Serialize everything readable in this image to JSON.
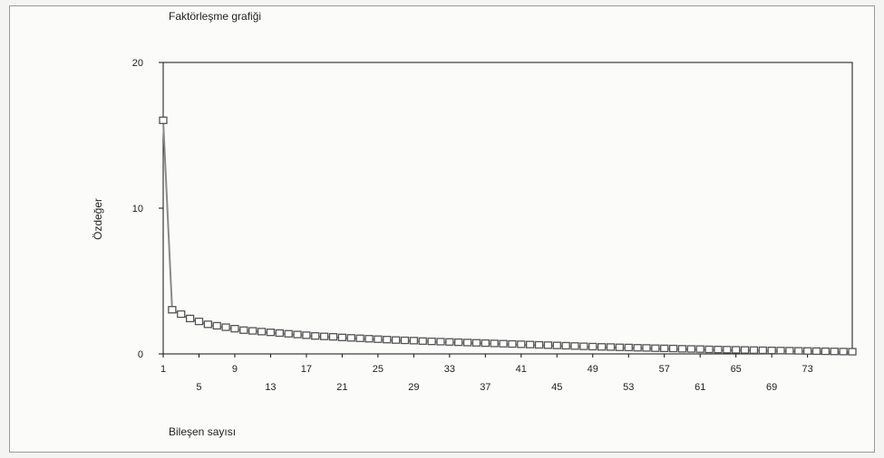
{
  "chart_data": {
    "type": "line",
    "title": "Faktörleşme grafiği",
    "xlabel": "Bileşen sayısı",
    "ylabel": "Özdeğer",
    "xlim": [
      1,
      78
    ],
    "ylim": [
      0,
      20
    ],
    "y_ticks": [
      0,
      10,
      20
    ],
    "x_ticks_upper": [
      1,
      9,
      17,
      25,
      33,
      41,
      49,
      57,
      65,
      73
    ],
    "x_ticks_lower": [
      5,
      13,
      21,
      29,
      37,
      45,
      53,
      61,
      69
    ],
    "grid": false,
    "legend": "none",
    "marker": "square",
    "line_color": "#8a8a8a",
    "x": [
      1,
      2,
      3,
      4,
      5,
      6,
      7,
      8,
      9,
      10,
      11,
      12,
      13,
      14,
      15,
      16,
      17,
      18,
      19,
      20,
      21,
      22,
      23,
      24,
      25,
      26,
      27,
      28,
      29,
      30,
      31,
      32,
      33,
      34,
      35,
      36,
      37,
      38,
      39,
      40,
      41,
      42,
      43,
      44,
      45,
      46,
      47,
      48,
      49,
      50,
      51,
      52,
      53,
      54,
      55,
      56,
      57,
      58,
      59,
      60,
      61,
      62,
      63,
      64,
      65,
      66,
      67,
      68,
      69,
      70,
      71,
      72,
      73,
      74,
      75,
      76,
      77,
      78
    ],
    "y": [
      16.0,
      3.0,
      2.7,
      2.4,
      2.2,
      2.0,
      1.9,
      1.8,
      1.7,
      1.6,
      1.55,
      1.5,
      1.45,
      1.4,
      1.35,
      1.3,
      1.25,
      1.2,
      1.17,
      1.14,
      1.1,
      1.07,
      1.04,
      1.01,
      0.98,
      0.95,
      0.92,
      0.9,
      0.88,
      0.85,
      0.83,
      0.81,
      0.79,
      0.77,
      0.75,
      0.73,
      0.71,
      0.69,
      0.67,
      0.65,
      0.63,
      0.61,
      0.59,
      0.57,
      0.55,
      0.53,
      0.51,
      0.49,
      0.47,
      0.45,
      0.44,
      0.42,
      0.41,
      0.39,
      0.38,
      0.36,
      0.35,
      0.34,
      0.32,
      0.31,
      0.3,
      0.28,
      0.27,
      0.26,
      0.25,
      0.24,
      0.23,
      0.22,
      0.21,
      0.2,
      0.19,
      0.18,
      0.17,
      0.16,
      0.15,
      0.14,
      0.13,
      0.12
    ]
  }
}
